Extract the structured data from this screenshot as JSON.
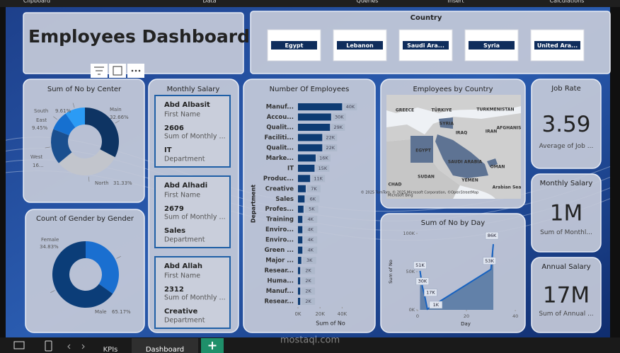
{
  "ribbon": [
    "Clipboard",
    "Data",
    "Queries",
    "Insert",
    "Calculations"
  ],
  "title": "Employees Dashboard",
  "country_slicer": {
    "title": "Country",
    "items": [
      "Egypt",
      "Lebanon",
      "Saudi Ara...",
      "Syria",
      "United Ara..."
    ]
  },
  "salary_cards": {
    "title": "Monthly Salary",
    "cards": [
      {
        "name": "Abd Albasit",
        "name_label": "First Name",
        "salary": 2606,
        "salary_label": "Sum of Monthly ...",
        "department": "IT",
        "department_label": "Department"
      },
      {
        "name": "Abd Alhadi",
        "name_label": "First Name",
        "salary": 2679,
        "salary_label": "Sum of Monthly ...",
        "department": "Sales",
        "department_label": "Department"
      },
      {
        "name": "Abd Allah",
        "name_label": "First Name",
        "salary": 2312,
        "salary_label": "Sum of Monthly ...",
        "department": "Creative",
        "department_label": "Department"
      }
    ]
  },
  "map": {
    "title": "Employees by Country",
    "labels": [
      "GREECE",
      "TÜRKIYE",
      "TURKMENISTAN",
      "SYRIA",
      "IRAQ",
      "IRAN",
      "AFGHANIS",
      "EGYPT",
      "SAUDI ARABIA",
      "OMAN",
      "SUDAN",
      "YEMEN",
      "CHAD",
      "Arabian Sea"
    ],
    "attribution": "© 2025 TomTom, © 2025 Microsoft Corporation, ©OpenStreetMap",
    "brand": "Microsoft Bing"
  },
  "kpis": [
    {
      "title": "Job Rate",
      "value": 3.59,
      "label": "Average of Job ..."
    },
    {
      "title": "Monthly Salary",
      "value": "1M",
      "label": "Sum of Monthl..."
    },
    {
      "title": "Annual Salary",
      "value": "17M",
      "label": "Sum of Annual ..."
    }
  ],
  "tabs": [
    "KPIs",
    "Dashboard"
  ],
  "watermark": "mostaql.com",
  "chart_data": [
    {
      "type": "donut",
      "title": "Sum of No by Center",
      "categories": [
        "Main",
        "North",
        "West",
        "East",
        "South"
      ],
      "values": [
        32.66,
        31.33,
        16.95,
        9.45,
        9.61
      ],
      "value_labels": [
        "32.66%",
        "31.33%",
        "16...",
        "9.45%",
        "9.61%"
      ],
      "colors": [
        "#0e3463",
        "#c2c5cc",
        "#1a4f8f",
        "#1670d0",
        "#2b9bf5"
      ]
    },
    {
      "type": "donut",
      "title": "Count of Gender by Gender",
      "categories": [
        "Female",
        "Male"
      ],
      "values": [
        34.83,
        65.17
      ],
      "value_labels": [
        "34.83%",
        "65.17%"
      ],
      "colors": [
        "#1a6fd0",
        "#0b3d78"
      ]
    },
    {
      "type": "hbar",
      "title": "Number Of Employees",
      "categories": [
        "Manuf...",
        "Accou...",
        "Qualit...",
        "Faciliti...",
        "Qualit...",
        "Marke...",
        "IT",
        "Produc...",
        "Creative",
        "Sales",
        "Profes...",
        "Training",
        "Enviro...",
        "Enviro...",
        "Green ...",
        "Major ...",
        "Resear...",
        "Huma...",
        "Manuf...",
        "Resear..."
      ],
      "values": [
        40000,
        30000,
        29000,
        22000,
        22000,
        16000,
        15000,
        11000,
        7000,
        6000,
        5000,
        4000,
        4000,
        4000,
        4000,
        3000,
        2000,
        2000,
        2000,
        2000
      ],
      "value_labels": [
        "40K",
        "30K",
        "29K",
        "22K",
        "22K",
        "16K",
        "15K",
        "11K",
        "7K",
        "6K",
        "5K",
        "4K",
        "4K",
        "4K",
        "4K",
        "3K",
        "2K",
        "2K",
        "2K",
        "2K"
      ],
      "color": "#0d3b73",
      "xlim": [
        0,
        50000
      ],
      "xticks": [
        {
          "value": 0,
          "label": "0K"
        },
        {
          "value": 20000,
          "label": "20K"
        },
        {
          "value": 40000,
          "label": "40K"
        }
      ],
      "xlabel": "Sum of No",
      "ylabel": "Department"
    },
    {
      "type": "area",
      "title": "Sum of No by Day",
      "x": [
        1,
        2,
        3,
        4,
        30,
        31
      ],
      "values": [
        51000,
        30000,
        17000,
        1000,
        53000,
        86000
      ],
      "value_labels": [
        "51K",
        "30K",
        "17K",
        "1K",
        "53K",
        "86K"
      ],
      "color": "#1d4f86",
      "xlim": [
        0,
        42
      ],
      "xticks": [
        0,
        20,
        40
      ],
      "ylim": [
        0,
        100000
      ],
      "yticks": [
        {
          "value": 0,
          "label": "0K"
        },
        {
          "value": 50000,
          "label": "50K"
        },
        {
          "value": 100000,
          "label": "100K"
        }
      ],
      "xlabel": "Day",
      "ylabel": "Sum of No"
    }
  ]
}
